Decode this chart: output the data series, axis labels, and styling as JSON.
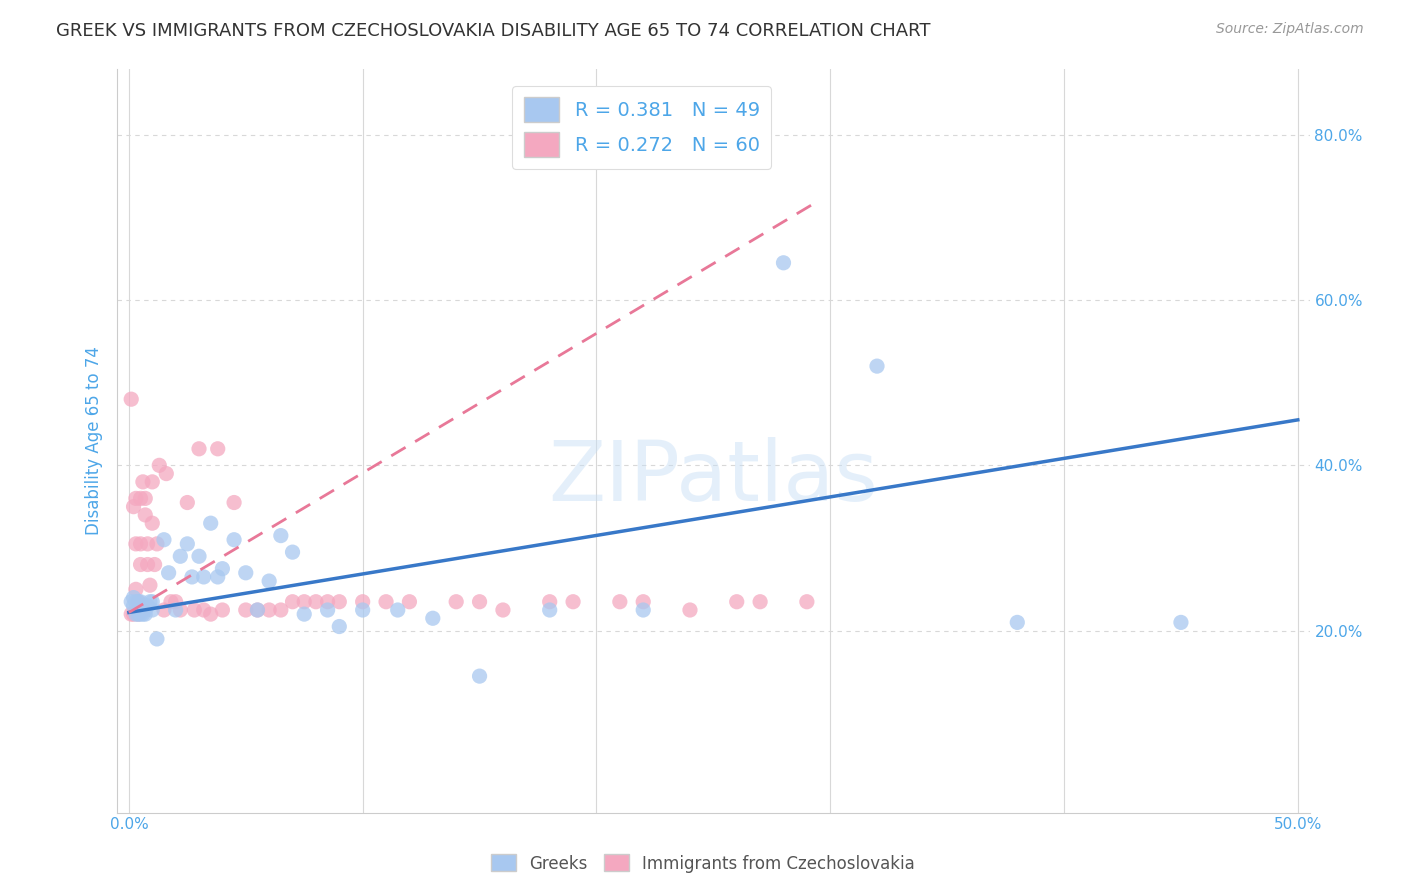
{
  "title": "GREEK VS IMMIGRANTS FROM CZECHOSLOVAKIA DISABILITY AGE 65 TO 74 CORRELATION CHART",
  "source": "Source: ZipAtlas.com",
  "ylabel": "Disability Age 65 to 74",
  "xlim": [
    -0.005,
    0.505
  ],
  "ylim": [
    -0.02,
    0.88
  ],
  "xtick_positions": [
    0.0,
    0.1,
    0.2,
    0.3,
    0.4,
    0.5
  ],
  "xticklabels": [
    "0.0%",
    "",
    "",
    "",
    "",
    "50.0%"
  ],
  "ytick_positions": [
    0.2,
    0.4,
    0.6,
    0.8
  ],
  "yticklabels": [
    "20.0%",
    "40.0%",
    "60.0%",
    "80.0%"
  ],
  "legend_labels": [
    "Greeks",
    "Immigrants from Czechoslovakia"
  ],
  "R_greek": 0.381,
  "N_greek": 49,
  "R_czech": 0.272,
  "N_czech": 60,
  "color_greek": "#a8c8f0",
  "color_czech": "#f4a8c0",
  "line_color_greek": "#3878c8",
  "line_color_czech": "#e87898",
  "background_color": "#ffffff",
  "grid_color": "#d8d8d8",
  "title_fontsize": 13,
  "greek_x": [
    0.001,
    0.002,
    0.002,
    0.003,
    0.003,
    0.004,
    0.004,
    0.005,
    0.005,
    0.005,
    0.006,
    0.006,
    0.007,
    0.007,
    0.008,
    0.009,
    0.01,
    0.01,
    0.012,
    0.015,
    0.017,
    0.02,
    0.022,
    0.025,
    0.027,
    0.03,
    0.032,
    0.035,
    0.038,
    0.04,
    0.045,
    0.05,
    0.055,
    0.06,
    0.065,
    0.07,
    0.075,
    0.085,
    0.09,
    0.1,
    0.115,
    0.13,
    0.15,
    0.18,
    0.22,
    0.28,
    0.32,
    0.38,
    0.45
  ],
  "greek_y": [
    0.235,
    0.24,
    0.23,
    0.22,
    0.235,
    0.22,
    0.235,
    0.22,
    0.235,
    0.225,
    0.22,
    0.23,
    0.22,
    0.225,
    0.23,
    0.235,
    0.235,
    0.225,
    0.19,
    0.31,
    0.27,
    0.225,
    0.29,
    0.305,
    0.265,
    0.29,
    0.265,
    0.33,
    0.265,
    0.275,
    0.31,
    0.27,
    0.225,
    0.26,
    0.315,
    0.295,
    0.22,
    0.225,
    0.205,
    0.225,
    0.225,
    0.215,
    0.145,
    0.225,
    0.225,
    0.645,
    0.52,
    0.21,
    0.21
  ],
  "czech_x": [
    0.001,
    0.001,
    0.002,
    0.002,
    0.003,
    0.003,
    0.003,
    0.004,
    0.004,
    0.005,
    0.005,
    0.005,
    0.006,
    0.006,
    0.007,
    0.007,
    0.008,
    0.008,
    0.009,
    0.01,
    0.01,
    0.011,
    0.012,
    0.013,
    0.015,
    0.016,
    0.018,
    0.02,
    0.022,
    0.025,
    0.028,
    0.03,
    0.032,
    0.035,
    0.038,
    0.04,
    0.045,
    0.05,
    0.055,
    0.06,
    0.065,
    0.07,
    0.075,
    0.08,
    0.085,
    0.09,
    0.1,
    0.11,
    0.12,
    0.14,
    0.15,
    0.16,
    0.18,
    0.19,
    0.21,
    0.22,
    0.24,
    0.26,
    0.27,
    0.29
  ],
  "czech_y": [
    0.22,
    0.48,
    0.35,
    0.22,
    0.36,
    0.305,
    0.25,
    0.235,
    0.22,
    0.36,
    0.305,
    0.28,
    0.225,
    0.38,
    0.34,
    0.36,
    0.305,
    0.28,
    0.255,
    0.38,
    0.33,
    0.28,
    0.305,
    0.4,
    0.225,
    0.39,
    0.235,
    0.235,
    0.225,
    0.355,
    0.225,
    0.42,
    0.225,
    0.22,
    0.42,
    0.225,
    0.355,
    0.225,
    0.225,
    0.225,
    0.225,
    0.235,
    0.235,
    0.235,
    0.235,
    0.235,
    0.235,
    0.235,
    0.235,
    0.235,
    0.235,
    0.225,
    0.235,
    0.235,
    0.235,
    0.235,
    0.225,
    0.235,
    0.235,
    0.235
  ],
  "greek_line_x0": 0.0,
  "greek_line_x1": 0.5,
  "greek_line_y0": 0.222,
  "greek_line_y1": 0.455,
  "czech_line_x0": 0.0,
  "czech_line_x1": 0.295,
  "czech_line_y0": 0.222,
  "czech_line_y1": 0.72
}
